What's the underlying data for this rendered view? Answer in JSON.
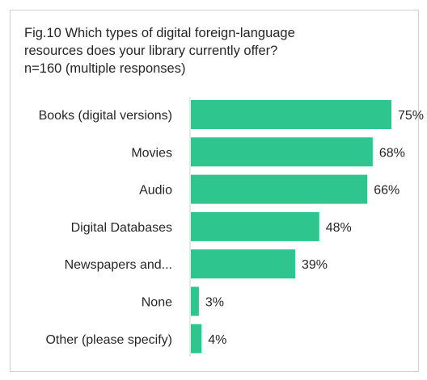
{
  "title_lines": [
    "Fig.10 Which types of digital foreign-language",
    "resources does your library currently offer?",
    "n=160 (multiple responses)"
  ],
  "colors": {
    "bar": "#2ec58e",
    "axis": "#d0d0d0"
  },
  "chart_data": {
    "type": "bar",
    "orientation": "horizontal",
    "title": "Fig.10 Which types of digital foreign-language resources does your library currently offer? n=160 (multiple responses)",
    "categories": [
      "Books (digital versions)",
      "Movies",
      "Audio",
      "Digital Databases",
      "Newspapers and...",
      "None",
      "Other (please specify)"
    ],
    "values": [
      75,
      68,
      66,
      48,
      39,
      3,
      4
    ],
    "value_labels": [
      "75%",
      "68%",
      "66%",
      "48%",
      "39%",
      "3%",
      "4%"
    ],
    "xlim": [
      0,
      75
    ],
    "grid": false,
    "legend": "none"
  }
}
